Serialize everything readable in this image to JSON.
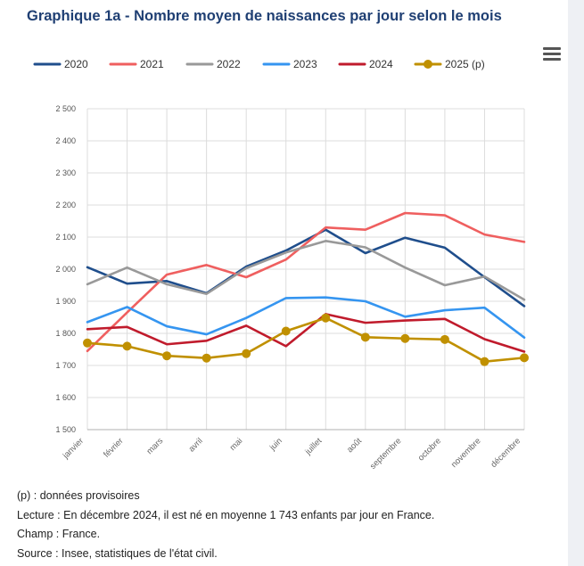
{
  "title": "Graphique 1a - Nombre moyen de naissances par jour selon le mois",
  "menu_icon": "hamburger-menu-icon",
  "notes": {
    "provisional": "(p) : données provisoires",
    "reading": "Lecture : En décembre 2024, il est né en moyenne 1 743 enfants par jour en France.",
    "scope": "Champ : France.",
    "source": "Source : Insee, statistiques de l'état civil."
  },
  "chart_data": {
    "type": "line",
    "title": "Graphique 1a - Nombre moyen de naissances par jour selon le mois",
    "xlabel": "",
    "ylabel": "",
    "ylim": [
      1500,
      2500
    ],
    "yticks": [
      1500,
      1600,
      1700,
      1800,
      1900,
      2000,
      2100,
      2200,
      2300,
      2400,
      2500
    ],
    "ytick_labels": [
      "1 500",
      "1 600",
      "1 700",
      "1 800",
      "1 900",
      "2 000",
      "2 100",
      "2 200",
      "2 300",
      "2 400",
      "2 500"
    ],
    "categories": [
      "janvier",
      "février",
      "mars",
      "avril",
      "mai",
      "juin",
      "juillet",
      "août",
      "septembre",
      "octobre",
      "novembre",
      "décembre"
    ],
    "legend_position": "top",
    "series": [
      {
        "name": "2020",
        "color": "#1f4e8c",
        "markers": false,
        "values": [
          2006,
          1955,
          1963,
          1925,
          2008,
          2058,
          2123,
          2050,
          2098,
          2067,
          1975,
          1885
        ]
      },
      {
        "name": "2021",
        "color": "#ef5f5f",
        "markers": false,
        "values": [
          1745,
          1865,
          1983,
          2013,
          1975,
          2030,
          2130,
          2123,
          2175,
          2168,
          2108,
          2085
        ]
      },
      {
        "name": "2022",
        "color": "#999999",
        "markers": false,
        "values": [
          1953,
          2005,
          1953,
          1923,
          2003,
          2052,
          2088,
          2068,
          2005,
          1950,
          1977,
          1905
        ]
      },
      {
        "name": "2023",
        "color": "#3595f0",
        "markers": false,
        "values": [
          1835,
          1882,
          1822,
          1797,
          1848,
          1910,
          1912,
          1900,
          1852,
          1872,
          1880,
          1787
        ]
      },
      {
        "name": "2024",
        "color": "#c01b2c",
        "markers": false,
        "values": [
          1813,
          1820,
          1766,
          1777,
          1824,
          1760,
          1860,
          1833,
          1840,
          1845,
          1782,
          1743
        ]
      },
      {
        "name": "2025 (p)",
        "color": "#c09000",
        "markers": true,
        "values": [
          1770,
          1760,
          1730,
          1723,
          1737,
          1807,
          1848,
          1788,
          1784,
          1781,
          1712,
          1724
        ]
      }
    ]
  }
}
